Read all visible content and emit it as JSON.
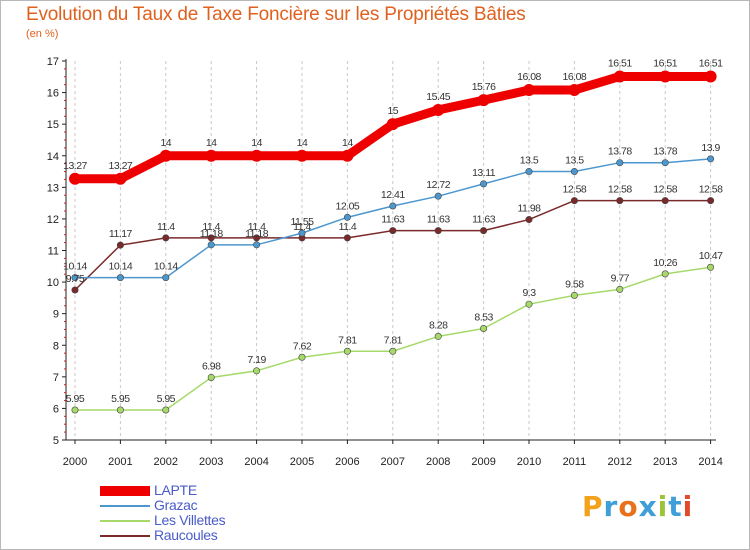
{
  "title": "Evolution du Taux de Taxe Foncière sur les Propriétés Bâties",
  "unit_label": "(en %)",
  "logo": {
    "text": "Proxiti",
    "colors": [
      "#f2a21b",
      "#3f9fd8",
      "#e8721c",
      "#3f9fd8",
      "#9bc43b",
      "#3f9fd8",
      "#e34a2a"
    ]
  },
  "chart_data": {
    "type": "line",
    "title": "Evolution du Taux de Taxe Foncière sur les Propriétés Bâties",
    "ylabel": "(en %)",
    "xlabel": "",
    "x": [
      "2000",
      "2001",
      "2002",
      "2003",
      "2004",
      "2005",
      "2006",
      "2007",
      "2008",
      "2009",
      "2010",
      "2011",
      "2012",
      "2013",
      "2014"
    ],
    "ylim": [
      5,
      17
    ],
    "yticks": [
      5,
      6,
      7,
      8,
      9,
      10,
      11,
      12,
      13,
      14,
      15,
      16,
      17
    ],
    "grid": "vertical dashed",
    "legend_position": "bottom-left",
    "series": [
      {
        "name": "LAPTE",
        "color": "#ee0000",
        "values": [
          13.27,
          13.27,
          14,
          14,
          14,
          14,
          14,
          15,
          15.45,
          15.76,
          16.08,
          16.08,
          16.51,
          16.51,
          16.51
        ],
        "labels": [
          "13.27",
          "13.27",
          "14",
          "14",
          "14",
          "14",
          "14",
          "15",
          "15.45",
          "15.76",
          "16.08",
          "16.08",
          "16.51",
          "16.51",
          "16.51"
        ]
      },
      {
        "name": "Grazac",
        "color": "#4d97cf",
        "values": [
          10.14,
          10.14,
          10.14,
          11.18,
          11.18,
          11.55,
          12.05,
          12.41,
          12.72,
          13.11,
          13.5,
          13.5,
          13.78,
          13.78,
          13.9
        ],
        "labels": [
          "10.14",
          "10.14",
          "10.14",
          "11.18",
          "11.18",
          "11.55",
          "12.05",
          "12.41",
          "12.72",
          "13.11",
          "13.5",
          "13.5",
          "13.78",
          "13.78",
          "13.9"
        ]
      },
      {
        "name": "Les Villettes",
        "color": "#a6d96a",
        "values": [
          5.95,
          5.95,
          5.95,
          6.98,
          7.19,
          7.62,
          7.81,
          7.81,
          8.28,
          8.53,
          9.3,
          9.58,
          9.77,
          10.26,
          10.47
        ],
        "labels": [
          "5.95",
          "5.95",
          "5.95",
          "6.98",
          "7.19",
          "7.62",
          "7.81",
          "7.81",
          "8.28",
          "8.53",
          "9.3",
          "9.58",
          "9.77",
          "10.26",
          "10.47"
        ]
      },
      {
        "name": "Raucoules",
        "color": "#7a2a2a",
        "values": [
          9.75,
          11.17,
          11.4,
          11.4,
          11.4,
          11.4,
          11.4,
          11.63,
          11.63,
          11.63,
          11.98,
          12.58,
          12.58,
          12.58,
          12.58
        ],
        "labels": [
          "9.75",
          "11.17",
          "11.4",
          "11.4",
          "11.4",
          "11.4",
          "11.4",
          "11.63",
          "11.63",
          "11.63",
          "11.98",
          "12.58",
          "12.58",
          "12.58",
          "12.58"
        ]
      }
    ]
  }
}
